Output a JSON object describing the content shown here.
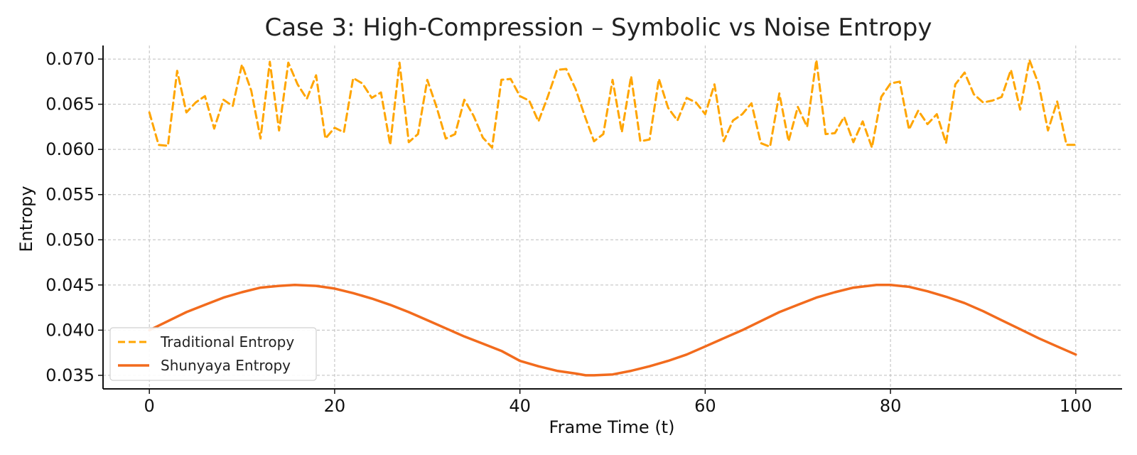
{
  "chart_data": {
    "type": "line",
    "title": "Case 3: High-Compression – Symbolic vs Noise Entropy",
    "xlabel": "Frame Time (t)",
    "ylabel": "Entropy",
    "xlim": [
      -5,
      105
    ],
    "ylim": [
      0.0335,
      0.0715
    ],
    "xticks": [
      0,
      20,
      40,
      60,
      80,
      100
    ],
    "xtick_labels": [
      "0",
      "20",
      "40",
      "60",
      "80",
      "100"
    ],
    "yticks": [
      0.035,
      0.04,
      0.045,
      0.05,
      0.055,
      0.06,
      0.065,
      0.07
    ],
    "ytick_labels": [
      "0.035",
      "0.040",
      "0.045",
      "0.050",
      "0.055",
      "0.060",
      "0.065",
      "0.070"
    ],
    "grid": true,
    "legend_position": "lower-left",
    "series": [
      {
        "name": "Traditional Entropy",
        "color": "#FFA500",
        "style": "dashed",
        "x": [
          0,
          1,
          2,
          3,
          4,
          5,
          6,
          7,
          8,
          9,
          10,
          11,
          12,
          13,
          14,
          15,
          16,
          17,
          18,
          19,
          20,
          21,
          22,
          23,
          24,
          25,
          26,
          27,
          28,
          29,
          30,
          31,
          32,
          33,
          34,
          35,
          36,
          37,
          38,
          39,
          40,
          41,
          42,
          43,
          44,
          45,
          46,
          47,
          48,
          49,
          50,
          51,
          52,
          53,
          54,
          55,
          56,
          57,
          58,
          59,
          60,
          61,
          62,
          63,
          64,
          65,
          66,
          67,
          68,
          69,
          70,
          71,
          72,
          73,
          74,
          75,
          76,
          77,
          78,
          79,
          80,
          81,
          82,
          83,
          84,
          85,
          86,
          87,
          88,
          89,
          90,
          91,
          92,
          93,
          94,
          95,
          96,
          97,
          98,
          99,
          100
        ],
        "values": [
          0.0641,
          0.0605,
          0.0604,
          0.0687,
          0.0641,
          0.0652,
          0.0659,
          0.0623,
          0.0655,
          0.0648,
          0.0694,
          0.0665,
          0.0612,
          0.0697,
          0.0621,
          0.0696,
          0.0672,
          0.0656,
          0.0682,
          0.0612,
          0.0624,
          0.0619,
          0.0679,
          0.0673,
          0.0657,
          0.0663,
          0.0605,
          0.0696,
          0.0608,
          0.0617,
          0.0677,
          0.0647,
          0.0612,
          0.0617,
          0.0655,
          0.0637,
          0.0613,
          0.0602,
          0.0677,
          0.0678,
          0.0659,
          0.0654,
          0.0631,
          0.0658,
          0.0688,
          0.0689,
          0.0667,
          0.0637,
          0.0609,
          0.0617,
          0.0677,
          0.0619,
          0.0681,
          0.0609,
          0.0611,
          0.0678,
          0.0646,
          0.0632,
          0.0657,
          0.0652,
          0.0639,
          0.0672,
          0.0609,
          0.0632,
          0.0639,
          0.0651,
          0.0607,
          0.0603,
          0.0662,
          0.0609,
          0.0647,
          0.0625,
          0.0699,
          0.0617,
          0.0618,
          0.0636,
          0.0608,
          0.0631,
          0.0602,
          0.0658,
          0.0673,
          0.0675,
          0.0622,
          0.0643,
          0.0628,
          0.0639,
          0.0607,
          0.0672,
          0.0685,
          0.0661,
          0.0652,
          0.0654,
          0.0658,
          0.0688,
          0.0644,
          0.0699,
          0.0672,
          0.0621,
          0.0653,
          0.0605,
          0.0605
        ]
      },
      {
        "name": "Shunyaya Entropy",
        "color": "#F26B1D",
        "style": "solid",
        "x": [
          0,
          2,
          4,
          6,
          8,
          10,
          12,
          14,
          15.7,
          18,
          20,
          22,
          24,
          26,
          28,
          30,
          32,
          34,
          36,
          38,
          40,
          42,
          44,
          46,
          47.1,
          48,
          50,
          52,
          54,
          56,
          58,
          60,
          62,
          64,
          66,
          68,
          70,
          72,
          74,
          76,
          78.5,
          80,
          82,
          84,
          86,
          88,
          90,
          92,
          94,
          96,
          98,
          100
        ],
        "values": [
          0.04,
          0.041,
          0.042,
          0.0428,
          0.0436,
          0.0442,
          0.0447,
          0.0449,
          0.045,
          0.0449,
          0.0446,
          0.0441,
          0.0435,
          0.0428,
          0.042,
          0.0411,
          0.0402,
          0.0393,
          0.0385,
          0.0377,
          0.0366,
          0.036,
          0.0355,
          0.0352,
          0.035,
          0.035,
          0.0351,
          0.0355,
          0.036,
          0.0366,
          0.0373,
          0.0382,
          0.0391,
          0.04,
          0.041,
          0.042,
          0.0428,
          0.0436,
          0.0442,
          0.0447,
          0.045,
          0.045,
          0.0448,
          0.0443,
          0.0437,
          0.043,
          0.0421,
          0.0411,
          0.0401,
          0.0391,
          0.0382,
          0.0373
        ]
      }
    ]
  }
}
